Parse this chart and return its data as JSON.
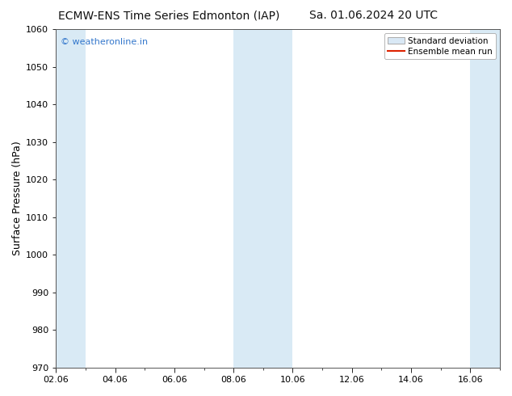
{
  "title_left": "ECMW-ENS Time Series Edmonton (IAP)",
  "title_right": "Sa. 01.06.2024 20 UTC",
  "ylabel": "Surface Pressure (hPa)",
  "ylim": [
    970,
    1060
  ],
  "yticks": [
    970,
    980,
    990,
    1000,
    1010,
    1020,
    1030,
    1040,
    1050,
    1060
  ],
  "xlim": [
    0,
    15
  ],
  "xtick_labels": [
    "02.06",
    "04.06",
    "06.06",
    "08.06",
    "10.06",
    "12.06",
    "14.06",
    "16.06"
  ],
  "xtick_positions": [
    0,
    2,
    4,
    6,
    8,
    10,
    12,
    14
  ],
  "shaded_bands": [
    {
      "x_start": 0.0,
      "x_end": 1.0,
      "color": "#d9eaf5"
    },
    {
      "x_start": 6.0,
      "x_end": 8.0,
      "color": "#d9eaf5"
    },
    {
      "x_start": 14.0,
      "x_end": 15.0,
      "color": "#d9eaf5"
    }
  ],
  "watermark_text": "© weatheronline.in",
  "watermark_color": "#3377cc",
  "legend_std_label": "Standard deviation",
  "legend_mean_label": "Ensemble mean run",
  "legend_std_facecolor": "#d9e8f5",
  "legend_std_edgecolor": "#aaaaaa",
  "legend_mean_color": "#dd2200",
  "background_color": "#ffffff",
  "plot_bg_color": "#ffffff",
  "spine_color": "#555555",
  "title_fontsize": 10,
  "ylabel_fontsize": 9,
  "tick_fontsize": 8,
  "watermark_fontsize": 8,
  "legend_fontsize": 7.5
}
